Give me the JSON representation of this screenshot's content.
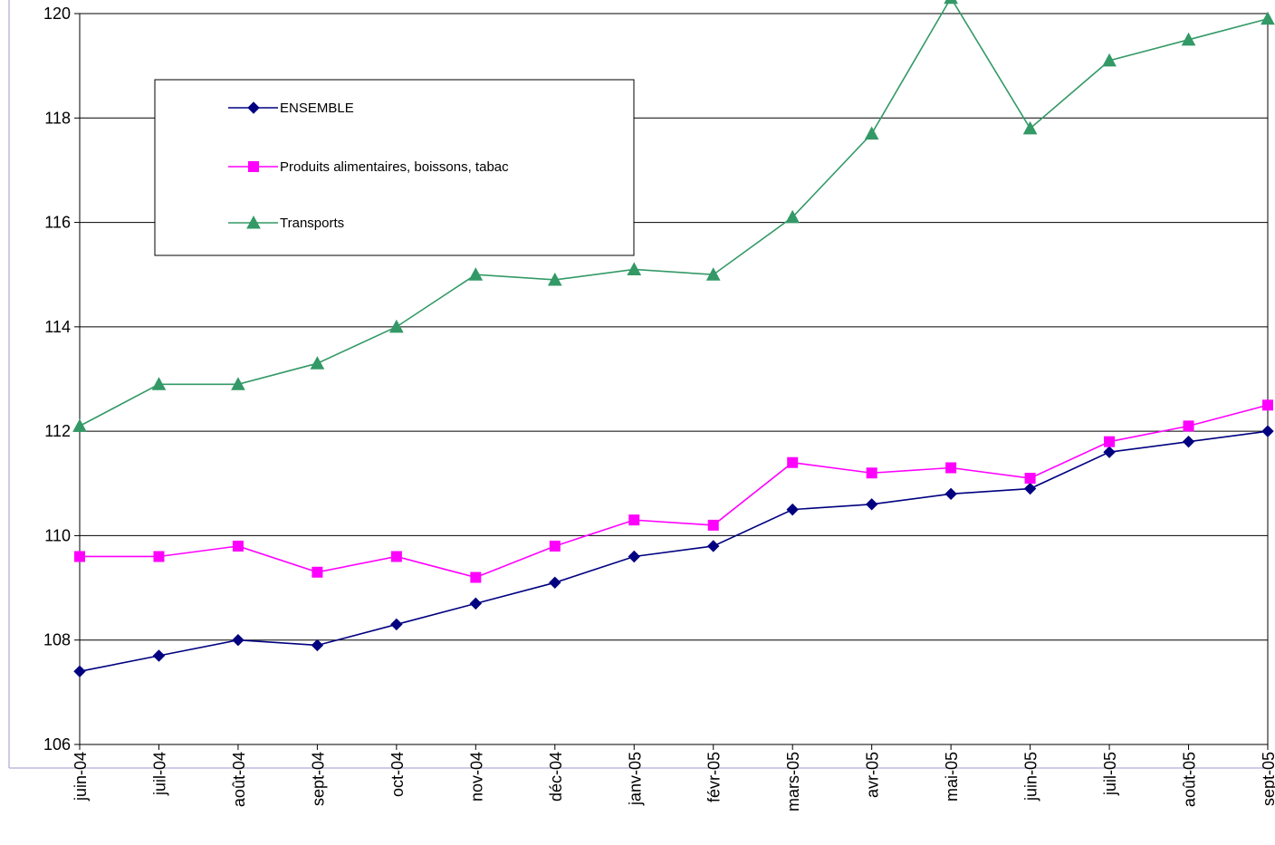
{
  "chart_data": {
    "type": "line",
    "title": "",
    "xlabel": "",
    "ylabel": "",
    "ylim": [
      106,
      120
    ],
    "y_ticks": [
      106,
      108,
      110,
      112,
      114,
      116,
      118,
      120
    ],
    "grid": true,
    "legend_position": "top-left",
    "categories": [
      "juin-04",
      "juil-04",
      "août-04",
      "sept-04",
      "oct-04",
      "nov-04",
      "déc-04",
      "janv-05",
      "févr-05",
      "mars-05",
      "avr-05",
      "mai-05",
      "juin-05",
      "juil-05",
      "août-05",
      "sept-05"
    ],
    "series": [
      {
        "name": "ENSEMBLE",
        "color": "#000080",
        "marker": "diamond",
        "values": [
          107.4,
          107.7,
          108.0,
          107.9,
          108.3,
          108.7,
          109.1,
          109.6,
          109.8,
          110.5,
          110.6,
          110.8,
          110.9,
          111.6,
          111.8,
          112.0
        ]
      },
      {
        "name": "Produits alimentaires, boissons, tabac",
        "color": "#ff00ff",
        "marker": "square",
        "values": [
          109.6,
          109.6,
          109.8,
          109.3,
          109.6,
          109.2,
          109.8,
          110.3,
          110.2,
          111.4,
          111.2,
          111.3,
          111.1,
          111.8,
          112.1,
          112.5
        ]
      },
      {
        "name": "Transports",
        "color": "#339966",
        "marker": "triangle",
        "values": [
          112.1,
          112.9,
          112.9,
          113.3,
          114.0,
          115.0,
          114.9,
          115.1,
          115.0,
          116.1,
          117.7,
          120.3,
          117.8,
          119.1,
          119.5,
          119.9
        ]
      }
    ]
  }
}
